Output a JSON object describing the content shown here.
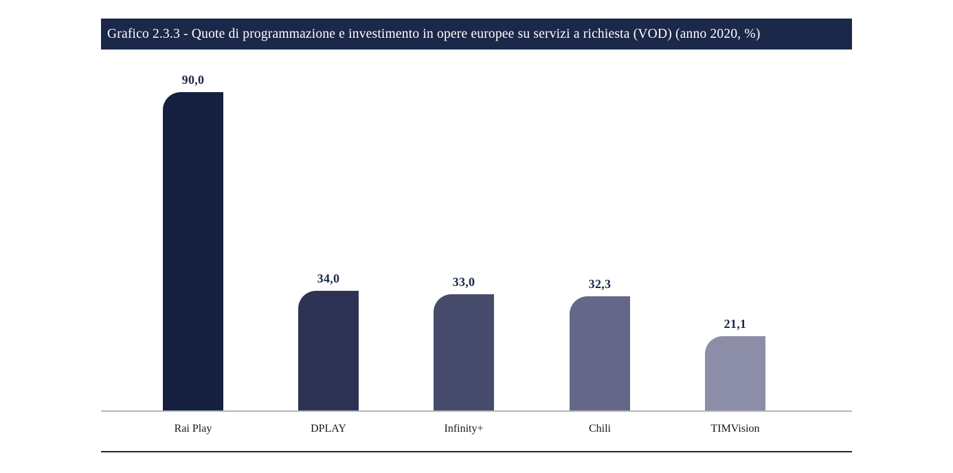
{
  "header": {
    "title": "Grafico 2.3.3 - Quote di programmazione e investimento in opere europee su servizi a richiesta (VOD) (anno 2020, %)",
    "banner_bg": "#1c2849",
    "banner_text_color": "#ffffff"
  },
  "chart_data": {
    "type": "bar",
    "title": "Grafico 2.3.3 - Quote di programmazione e investimento in opere europee su servizi a richiesta (VOD) (anno 2020, %)",
    "categories": [
      "Rai Play",
      "DPLAY",
      "Infinity+",
      "Chili",
      "TIMVision"
    ],
    "values": [
      90.0,
      34.0,
      33.0,
      32.3,
      21.1
    ],
    "value_labels": [
      "90,0",
      "34,0",
      "33,0",
      "32,3",
      "21,1"
    ],
    "bar_colors": [
      "#15203e",
      "#2d3355",
      "#474c6d",
      "#646789",
      "#8c8da7"
    ],
    "value_label_color": "#1b2747",
    "axis_line_color": "#b4b4bc",
    "bottom_rule_color": "#1d2433",
    "xlabel": "",
    "ylabel": "",
    "ylim": [
      0,
      90
    ],
    "unit": "%",
    "year": "2020",
    "grid": false,
    "legend": false
  }
}
